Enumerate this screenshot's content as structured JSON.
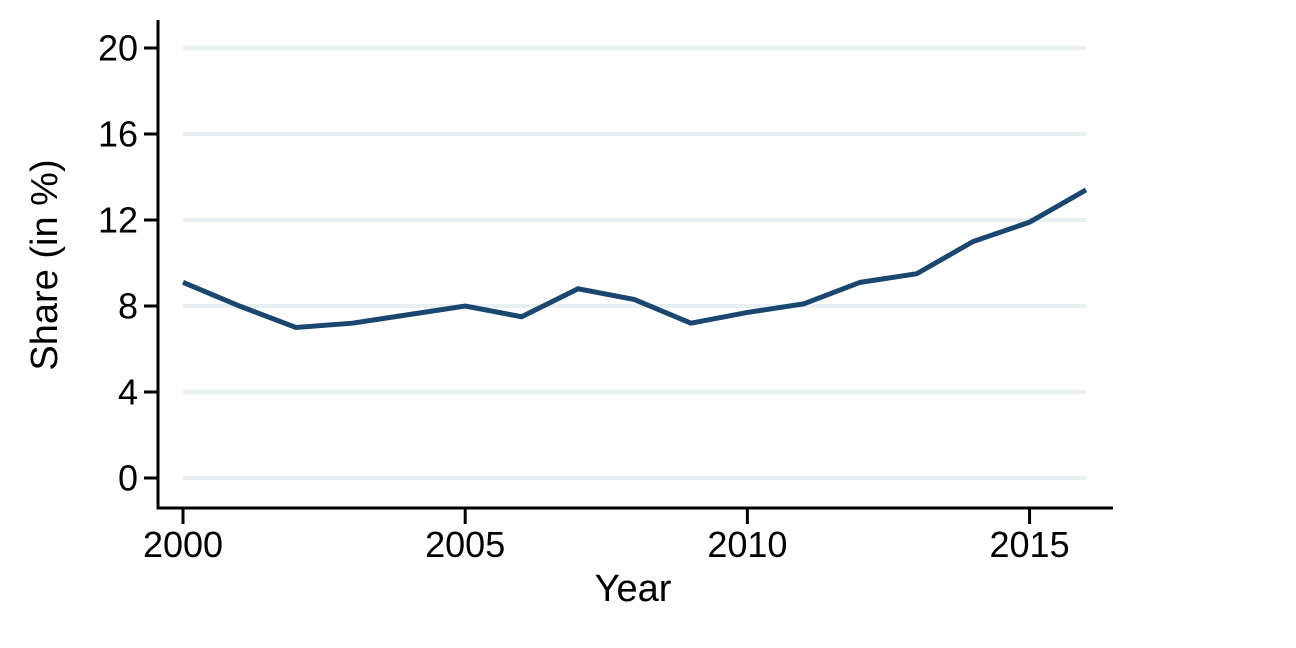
{
  "chart_data": {
    "type": "line",
    "title": "",
    "xlabel": "Year",
    "ylabel": "Share (in %)",
    "x": [
      2000,
      2001,
      2002,
      2003,
      2004,
      2005,
      2006,
      2007,
      2008,
      2009,
      2010,
      2011,
      2012,
      2013,
      2014,
      2015,
      2016
    ],
    "series": [
      {
        "name": "Share",
        "values": [
          9.1,
          8.0,
          7.0,
          7.2,
          7.6,
          8.0,
          7.5,
          8.8,
          8.3,
          7.2,
          7.7,
          8.1,
          9.1,
          9.5,
          11.0,
          11.9,
          13.4
        ]
      }
    ],
    "xlim": [
      2000,
      2016
    ],
    "ylim": [
      0,
      20
    ],
    "xticks": [
      2000,
      2005,
      2010,
      2015
    ],
    "yticks": [
      0,
      4,
      8,
      12,
      16,
      20
    ],
    "grid": "horizontal",
    "legend": "none",
    "colors": {
      "line": "#1a476f",
      "grid": "#e8f0f1",
      "axis": "#000000",
      "background": "#ffffff"
    }
  }
}
